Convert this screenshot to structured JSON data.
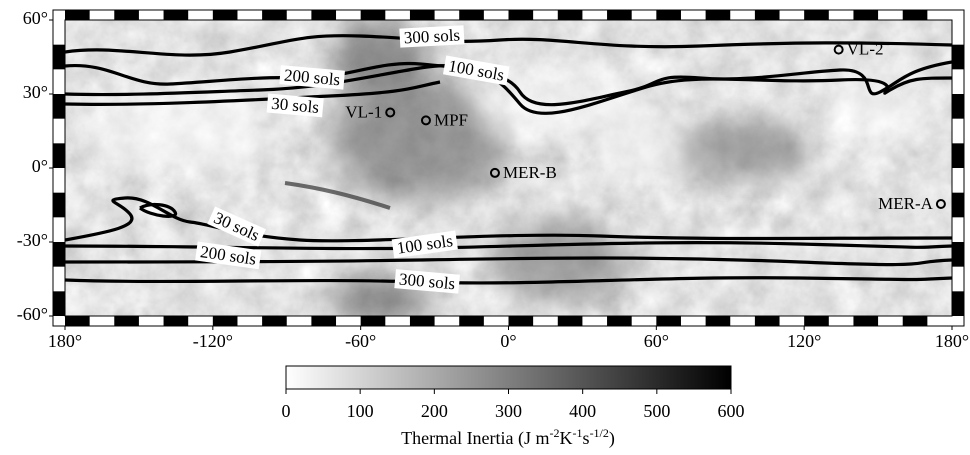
{
  "map": {
    "xlim": [
      -180,
      180
    ],
    "ylim": [
      -60,
      60
    ],
    "xticks": [
      {
        "value": -180,
        "label": "180°"
      },
      {
        "value": -120,
        "label": "-120°"
      },
      {
        "value": -60,
        "label": "-60°"
      },
      {
        "value": 0,
        "label": "0°"
      },
      {
        "value": 60,
        "label": "60°"
      },
      {
        "value": 120,
        "label": "120°"
      },
      {
        "value": 180,
        "label": "180°"
      }
    ],
    "yticks": [
      {
        "value": 60,
        "label": "60°"
      },
      {
        "value": 30,
        "label": "30°"
      },
      {
        "value": 0,
        "label": "0°"
      },
      {
        "value": -30,
        "label": "-30°"
      },
      {
        "value": -60,
        "label": "-60°"
      }
    ],
    "sites": [
      {
        "label": "VL-1",
        "lon": -48,
        "lat": 22.5
      },
      {
        "label": "MPF",
        "lon": -33.5,
        "lat": 19.3
      },
      {
        "label": "MER-B",
        "lon": -5.5,
        "lat": -2
      },
      {
        "label": "MER-A",
        "lon": 175.5,
        "lat": -14.6
      },
      {
        "label": "VL-2",
        "lon": 134,
        "lat": 48
      }
    ],
    "contour_labels": [
      "300 sols",
      "200 sols",
      "100 sols",
      "30 sols",
      "30 sols",
      "200 sols",
      "100 sols",
      "300 sols"
    ]
  },
  "colorbar": {
    "range": [
      0,
      600
    ],
    "ticks": [
      0,
      100,
      200,
      300,
      400,
      500,
      600
    ],
    "label": [
      "Thermal Inertia (J m",
      "-2",
      "K",
      "-1",
      "s",
      "-1/2",
      ")"
    ]
  }
}
